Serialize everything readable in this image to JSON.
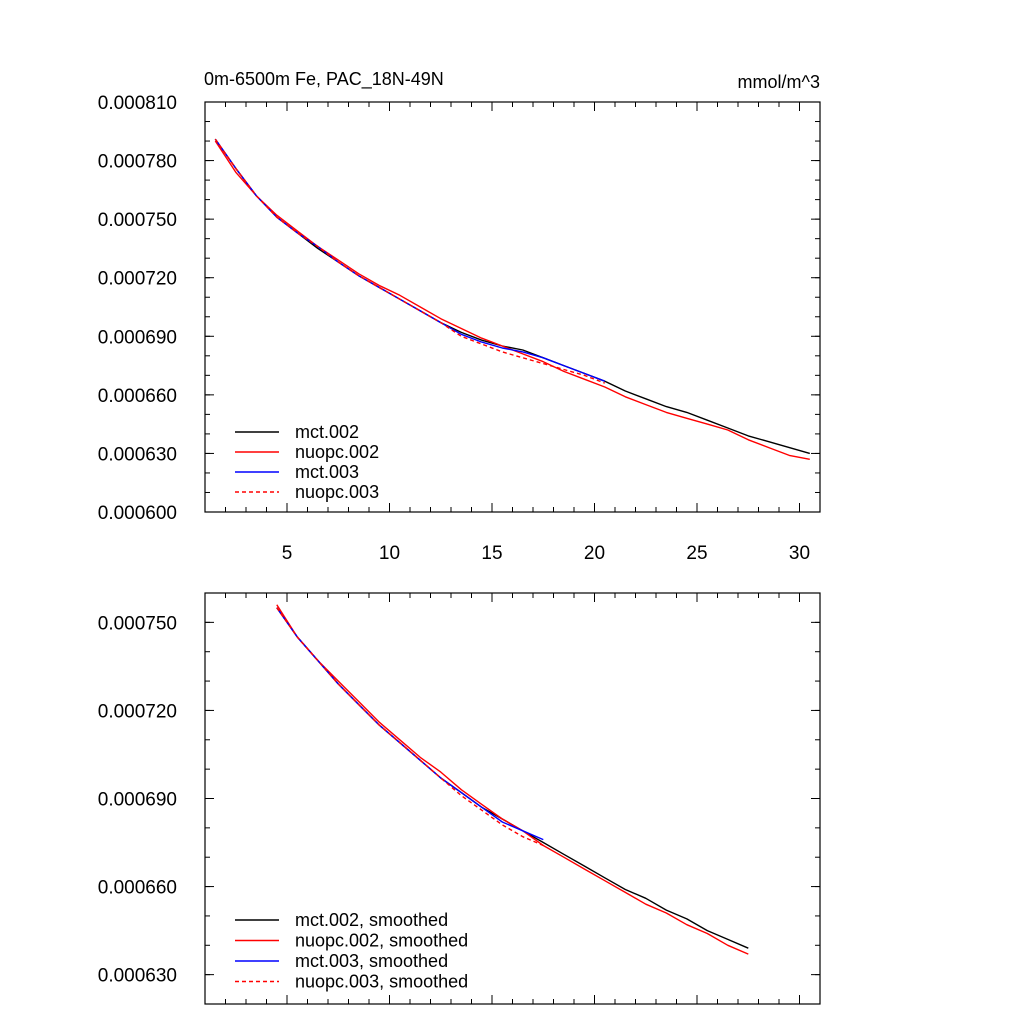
{
  "chart_data": [
    {
      "type": "line",
      "title": "0m-6500m Fe, PAC_18N-49N",
      "units": "mmol/m^3",
      "xlabel": "",
      "ylabel": "",
      "xlim": [
        1,
        31
      ],
      "ylim": [
        0.0006,
        0.00081
      ],
      "xticks": [
        5,
        10,
        15,
        20,
        25,
        30
      ],
      "xtick_labels": [
        "5",
        "10",
        "15",
        "20",
        "25",
        "30"
      ],
      "yticks": [
        0.0006,
        0.00063,
        0.00066,
        0.00069,
        0.00072,
        0.00075,
        0.00078,
        0.00081
      ],
      "ytick_labels": [
        "0.000600",
        "0.000630",
        "0.000660",
        "0.000690",
        "0.000720",
        "0.000750",
        "0.000780",
        "0.000810"
      ],
      "legend_position": "bottom-left",
      "series": [
        {
          "name": "mct.002",
          "color": "#000000",
          "dash": "solid",
          "x": [
            1.5,
            2.5,
            3.5,
            4.5,
            5.5,
            6.5,
            7.5,
            8.5,
            9.5,
            10.5,
            11.5,
            12.5,
            13.5,
            14.5,
            15.5,
            16.5,
            17.5,
            18.5,
            19.5,
            20.5,
            21.5,
            22.5,
            23.5,
            24.5,
            25.5,
            26.5,
            27.5,
            28.5,
            29.5,
            30.5
          ],
          "y": [
            0.000791,
            0.000776,
            0.000762,
            0.000751,
            0.000743,
            0.000735,
            0.000728,
            0.000721,
            0.000715,
            0.000709,
            0.000703,
            0.000697,
            0.000692,
            0.000688,
            0.000685,
            0.000683,
            0.000679,
            0.000675,
            0.000671,
            0.000667,
            0.000662,
            0.000658,
            0.000654,
            0.000651,
            0.000647,
            0.000643,
            0.000639,
            0.000636,
            0.000633,
            0.00063
          ]
        },
        {
          "name": "nuopc.002",
          "color": "#ff0000",
          "dash": "solid",
          "x": [
            1.5,
            2.5,
            3.5,
            4.5,
            5.5,
            6.5,
            7.5,
            8.5,
            9.5,
            10.5,
            11.5,
            12.5,
            13.5,
            14.5,
            15.5,
            16.5,
            17.5,
            18.5,
            19.5,
            20.5,
            21.5,
            22.5,
            23.5,
            24.5,
            25.5,
            26.5,
            27.5,
            28.5,
            29.5,
            30.5
          ],
          "y": [
            0.00079,
            0.000774,
            0.000762,
            0.000752,
            0.000744,
            0.000736,
            0.000729,
            0.000722,
            0.000716,
            0.000711,
            0.000705,
            0.000699,
            0.000694,
            0.000689,
            0.000685,
            0.000681,
            0.000677,
            0.000672,
            0.000668,
            0.000664,
            0.000659,
            0.000655,
            0.000651,
            0.000648,
            0.000645,
            0.000642,
            0.000637,
            0.000633,
            0.000629,
            0.000627
          ]
        },
        {
          "name": "mct.003",
          "color": "#0000ff",
          "dash": "solid",
          "x": [
            1.5,
            2.5,
            3.5,
            4.5,
            5.5,
            6.5,
            7.5,
            8.5,
            9.5,
            10.5,
            11.5,
            12.5,
            13.5,
            14.5,
            15.5,
            16.5,
            17.5,
            18.5,
            19.5,
            20.5
          ],
          "y": [
            0.000791,
            0.000776,
            0.000762,
            0.000751,
            0.000743,
            0.000736,
            0.000728,
            0.000721,
            0.000715,
            0.000709,
            0.000703,
            0.000697,
            0.000691,
            0.000687,
            0.000684,
            0.000682,
            0.000679,
            0.000675,
            0.000671,
            0.000667
          ]
        },
        {
          "name": "nuopc.003",
          "color": "#ff0000",
          "dash": "dashed",
          "x": [
            1.5,
            2.5,
            3.5,
            4.5,
            5.5,
            6.5,
            7.5,
            8.5,
            9.5,
            10.5,
            11.5,
            12.5,
            13.5,
            14.5,
            15.5,
            16.5,
            17.5,
            18.5,
            19.5,
            20.5
          ],
          "y": [
            0.000791,
            0.000776,
            0.000762,
            0.000751,
            0.000743,
            0.000736,
            0.000728,
            0.000721,
            0.000715,
            0.000709,
            0.000703,
            0.000697,
            0.00069,
            0.000686,
            0.000682,
            0.000679,
            0.000676,
            0.000673,
            0.00067,
            0.000666
          ]
        }
      ]
    },
    {
      "type": "line",
      "title": "",
      "xlabel": "",
      "ylabel": "",
      "xlim": [
        1,
        31
      ],
      "ylim": [
        0.00062,
        0.00076
      ],
      "xticks": [
        5,
        10,
        15,
        20,
        25,
        30
      ],
      "xtick_labels": [],
      "yticks": [
        0.00063,
        0.00066,
        0.00069,
        0.00072,
        0.00075
      ],
      "ytick_labels": [
        "0.000630",
        "0.000660",
        "0.000690",
        "0.000720",
        "0.000750"
      ],
      "legend_position": "bottom-left",
      "series": [
        {
          "name": "mct.002, smoothed",
          "color": "#000000",
          "dash": "solid",
          "x": [
            4.5,
            5.5,
            6.5,
            7.5,
            8.5,
            9.5,
            10.5,
            11.5,
            12.5,
            13.5,
            14.5,
            15.5,
            16.5,
            17.5,
            18.5,
            19.5,
            20.5,
            21.5,
            22.5,
            23.5,
            24.5,
            25.5,
            26.5,
            27.5
          ],
          "y": [
            0.000755,
            0.000745,
            0.000737,
            0.000729,
            0.000722,
            0.000715,
            0.000709,
            0.000703,
            0.000697,
            0.000692,
            0.000687,
            0.000683,
            0.000679,
            0.000675,
            0.000671,
            0.000667,
            0.000663,
            0.000659,
            0.000656,
            0.000652,
            0.000649,
            0.000645,
            0.000642,
            0.000639
          ]
        },
        {
          "name": "nuopc.002, smoothed",
          "color": "#ff0000",
          "dash": "solid",
          "x": [
            4.5,
            5.5,
            6.5,
            7.5,
            8.5,
            9.5,
            10.5,
            11.5,
            12.5,
            13.5,
            14.5,
            15.5,
            16.5,
            17.5,
            18.5,
            19.5,
            20.5,
            21.5,
            22.5,
            23.5,
            24.5,
            25.5,
            26.5,
            27.5
          ],
          "y": [
            0.000756,
            0.000745,
            0.000737,
            0.00073,
            0.000723,
            0.000716,
            0.00071,
            0.000704,
            0.000699,
            0.000693,
            0.000688,
            0.000683,
            0.000679,
            0.000674,
            0.00067,
            0.000666,
            0.000662,
            0.000658,
            0.000654,
            0.000651,
            0.000647,
            0.000644,
            0.00064,
            0.000637
          ]
        },
        {
          "name": "mct.003, smoothed",
          "color": "#0000ff",
          "dash": "solid",
          "x": [
            4.5,
            5.5,
            6.5,
            7.5,
            8.5,
            9.5,
            10.5,
            11.5,
            12.5,
            13.5,
            14.5,
            15.5,
            16.5,
            17.5
          ],
          "y": [
            0.000755,
            0.000745,
            0.000737,
            0.000729,
            0.000722,
            0.000715,
            0.000709,
            0.000703,
            0.000697,
            0.000692,
            0.000687,
            0.000682,
            0.000679,
            0.000676
          ]
        },
        {
          "name": "nuopc.003, smoothed",
          "color": "#ff0000",
          "dash": "dashed",
          "x": [
            4.5,
            5.5,
            6.5,
            7.5,
            8.5,
            9.5,
            10.5,
            11.5,
            12.5,
            13.5,
            14.5,
            15.5,
            16.5,
            17.5
          ],
          "y": [
            0.000755,
            0.000745,
            0.000737,
            0.000729,
            0.000722,
            0.000715,
            0.000709,
            0.000703,
            0.000697,
            0.000691,
            0.000686,
            0.000681,
            0.000677,
            0.000674
          ]
        }
      ]
    }
  ]
}
